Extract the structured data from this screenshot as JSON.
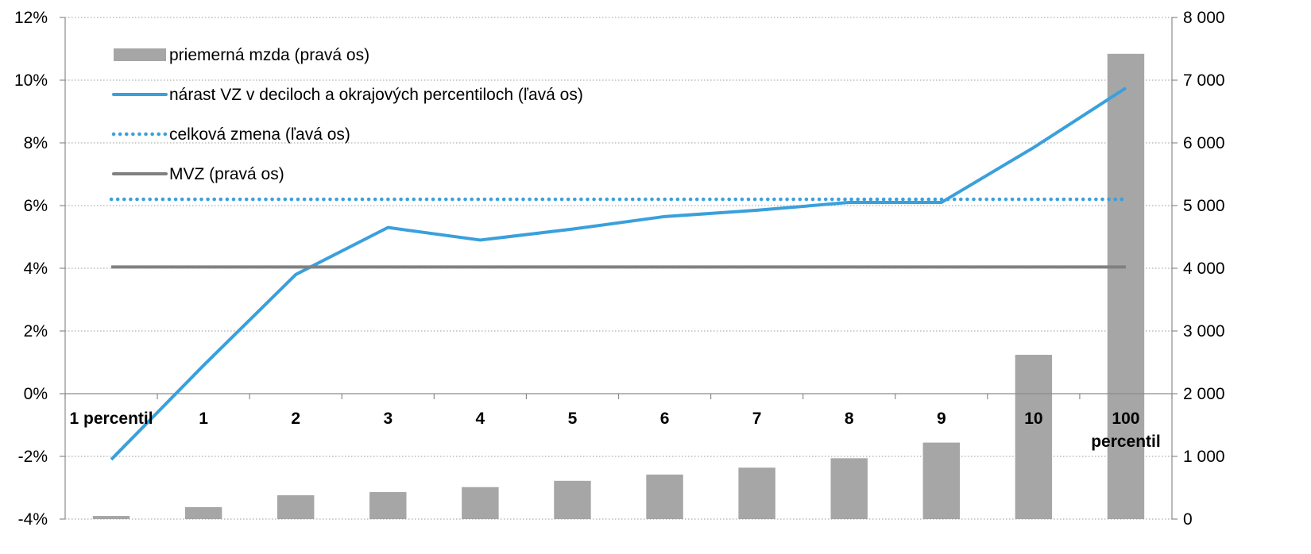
{
  "chart_data": {
    "type": "bar",
    "categories": [
      "1 percentil",
      "1",
      "2",
      "3",
      "4",
      "5",
      "6",
      "7",
      "8",
      "9",
      "10",
      "100 percentil"
    ],
    "category_label_lines": [
      [
        "1 percentil"
      ],
      [
        "1"
      ],
      [
        "2"
      ],
      [
        "3"
      ],
      [
        "4"
      ],
      [
        "5"
      ],
      [
        "6"
      ],
      [
        "7"
      ],
      [
        "8"
      ],
      [
        "9"
      ],
      [
        "10"
      ],
      [
        "100",
        "percentil"
      ]
    ],
    "series": [
      {
        "name": "priemerná mzda (pravá os)",
        "type": "bar",
        "axis": "right",
        "color": "#a6a6a6",
        "values": [
          50,
          190,
          380,
          430,
          510,
          610,
          710,
          820,
          970,
          1220,
          2620,
          7420
        ]
      },
      {
        "name": "nárast VZ v deciloch a okrajových percentiloch (ľavá os)",
        "type": "line",
        "axis": "left",
        "color": "#3aa0dc",
        "values": [
          -2.1,
          0.9,
          3.8,
          5.3,
          4.9,
          5.25,
          5.65,
          5.85,
          6.1,
          6.1,
          7.85,
          9.75
        ]
      },
      {
        "name": "celková zmena (ľavá os)",
        "type": "line",
        "style": "dotted",
        "axis": "left",
        "color": "#3aa0dc",
        "values": [
          6.2,
          6.2,
          6.2,
          6.2,
          6.2,
          6.2,
          6.2,
          6.2,
          6.2,
          6.2,
          6.2,
          6.2
        ]
      },
      {
        "name": "MVZ (pravá os)",
        "type": "line",
        "axis": "right",
        "color": "#808080",
        "values": [
          4020,
          4020,
          4020,
          4020,
          4020,
          4020,
          4020,
          4020,
          4020,
          4020,
          4020,
          4020
        ]
      }
    ],
    "left_axis": {
      "ylim": [
        -4,
        12
      ],
      "ticks": [
        -4,
        -2,
        0,
        2,
        4,
        6,
        8,
        10,
        12
      ],
      "tick_labels": [
        "-4%",
        "-2%",
        "0%",
        "2%",
        "4%",
        "6%",
        "8%",
        "10%",
        "12%"
      ]
    },
    "right_axis": {
      "ylim": [
        0,
        8000
      ],
      "ticks": [
        0,
        1000,
        2000,
        3000,
        4000,
        5000,
        6000,
        7000,
        8000
      ],
      "tick_labels": [
        "0",
        "1 000",
        "2 000",
        "3 000",
        "4 000",
        "5 000",
        "6 000",
        "7 000",
        "8 000"
      ]
    },
    "grid": true,
    "legend_position": "top-left"
  }
}
